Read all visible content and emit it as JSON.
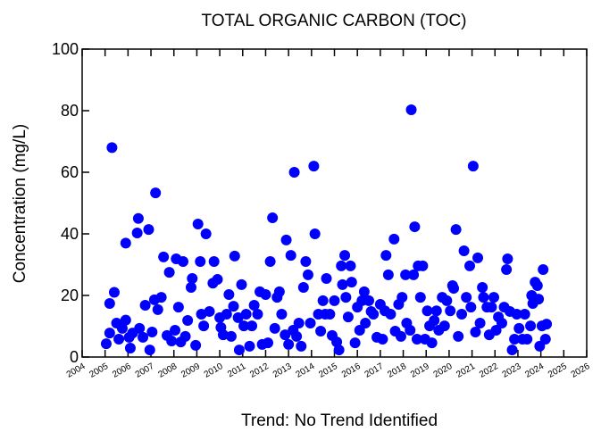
{
  "chart_data": {
    "type": "scatter",
    "title": "TOTAL ORGANIC CARBON (TOC)",
    "y_label": "Concentration (mg/L)",
    "annotation": "Trend: No Trend Identified",
    "xlim": [
      2004,
      2026
    ],
    "ylim": [
      0,
      100
    ],
    "xticks": [
      2004,
      2005,
      2006,
      2007,
      2008,
      2009,
      2010,
      2011,
      2012,
      2013,
      2014,
      2015,
      2016,
      2017,
      2018,
      2019,
      2020,
      2021,
      2022,
      2023,
      2024,
      2025,
      2026
    ],
    "yticks": [
      0,
      20,
      40,
      60,
      80,
      100
    ],
    "series": [
      {
        "color": "#0000ff",
        "x": [
          2005.05,
          2005.2,
          2005.2,
          2005.4,
          2005.3,
          2005.5,
          2005.6,
          2005.75,
          2005.9,
          2005.9,
          2006.05,
          2006.1,
          2006.2,
          2006.4,
          2006.45,
          2006.5,
          2006.65,
          2006.75,
          2006.9,
          2006.95,
          2007.05,
          2007.15,
          2007.2,
          2007.3,
          2007.45,
          2007.55,
          2007.7,
          2007.8,
          2007.9,
          2008.05,
          2008.1,
          2008.2,
          2008.3,
          2008.4,
          2008.5,
          2008.6,
          2008.75,
          2008.8,
          2008.95,
          2009.05,
          2009.15,
          2009.2,
          2009.3,
          2009.4,
          2009.55,
          2009.7,
          2009.75,
          2009.9,
          2010.0,
          2010.05,
          2010.15,
          2010.3,
          2010.4,
          2010.5,
          2010.6,
          2010.65,
          2010.8,
          2010.85,
          2010.95,
          2011.05,
          2011.15,
          2011.3,
          2011.4,
          2011.5,
          2011.65,
          2011.75,
          2011.85,
          2012.0,
          2012.1,
          2012.2,
          2012.3,
          2012.4,
          2012.5,
          2012.6,
          2012.7,
          2012.85,
          2012.9,
          2013.0,
          2013.1,
          2013.2,
          2013.25,
          2013.35,
          2013.45,
          2013.55,
          2013.65,
          2013.75,
          2013.85,
          2013.95,
          2014.1,
          2014.15,
          2014.3,
          2014.4,
          2014.5,
          2014.6,
          2014.65,
          2014.8,
          2014.9,
          2015.0,
          2015.1,
          2015.2,
          2015.3,
          2015.35,
          2015.45,
          2015.5,
          2015.6,
          2015.7,
          2015.75,
          2015.9,
          2016.0,
          2016.1,
          2016.2,
          2016.3,
          2016.35,
          2016.5,
          2016.6,
          2016.7,
          2016.85,
          2017.0,
          2017.1,
          2017.2,
          2017.25,
          2017.35,
          2017.45,
          2017.6,
          2017.65,
          2017.8,
          2017.9,
          2017.95,
          2018.1,
          2018.15,
          2018.3,
          2018.35,
          2018.45,
          2018.5,
          2018.6,
          2018.65,
          2018.75,
          2018.85,
          2018.95,
          2019.05,
          2019.15,
          2019.25,
          2019.35,
          2019.45,
          2019.55,
          2019.7,
          2019.8,
          2019.9,
          2020.05,
          2020.15,
          2020.2,
          2020.3,
          2020.4,
          2020.55,
          2020.65,
          2020.75,
          2020.9,
          2020.95,
          2021.05,
          2021.15,
          2021.25,
          2021.35,
          2021.45,
          2021.5,
          2021.65,
          2021.75,
          2021.85,
          2021.95,
          2022.05,
          2022.15,
          2022.3,
          2022.4,
          2022.5,
          2022.55,
          2022.65,
          2022.75,
          2022.85,
          2022.95,
          2023.05,
          2023.2,
          2023.3,
          2023.4,
          2023.55,
          2023.6,
          2023.65,
          2023.75,
          2023.85,
          2023.9,
          2023.95,
          2024.05,
          2024.1,
          2024.2,
          2024.25
        ],
        "values": [
          4.3,
          7.8,
          17.4,
          21,
          68,
          11,
          5.8,
          9.3,
          12,
          37,
          6.4,
          2.9,
          7.8,
          40.3,
          45,
          9.3,
          6.4,
          16.8,
          41.4,
          2.3,
          8.1,
          18.6,
          53.3,
          15.4,
          19.4,
          32.5,
          7,
          27.5,
          5.2,
          8.7,
          31.9,
          16.2,
          4.9,
          31,
          6.7,
          11.9,
          22.6,
          25.5,
          3.8,
          43.2,
          31,
          13.9,
          10.1,
          40,
          14.8,
          24,
          31,
          25.2,
          12.8,
          9.6,
          7.2,
          13.9,
          20.3,
          6.7,
          16.5,
          32.8,
          12.8,
          2.3,
          23.5,
          10.1,
          13.9,
          3.5,
          10.1,
          16.8,
          13.9,
          21.2,
          4.1,
          20.3,
          4.6,
          31,
          45.2,
          9.3,
          19.4,
          21.2,
          13.9,
          7.2,
          38,
          4.1,
          33,
          8.7,
          60,
          6.7,
          11,
          3.5,
          22.6,
          31,
          26.7,
          11,
          62,
          40,
          13.9,
          8.4,
          18.3,
          13.9,
          25.5,
          13.9,
          7,
          18.3,
          4.9,
          2.3,
          29.6,
          23.5,
          33,
          19.4,
          13,
          29.6,
          24.3,
          4.6,
          16.2,
          8.7,
          18.3,
          21.2,
          11,
          18.3,
          14.8,
          13.9,
          6.4,
          17.1,
          5.8,
          15,
          33,
          26.7,
          13.9,
          38.3,
          8.4,
          17.1,
          6.7,
          19.4,
          26.7,
          11,
          8.7,
          80.3,
          26.7,
          42.3,
          5.8,
          29.6,
          19.4,
          29.6,
          5.8,
          15,
          10.1,
          4.6,
          11.9,
          15,
          8.7,
          19.4,
          10.1,
          18.3,
          15,
          23.2,
          22.3,
          41.4,
          6.7,
          13.9,
          34.5,
          19.4,
          29.6,
          16.2,
          62,
          8.1,
          32.2,
          11,
          22.6,
          19.4,
          16.2,
          7.2,
          16.2,
          19.4,
          8.7,
          13,
          11,
          16.2,
          28.4,
          31.9,
          14.8,
          2.3,
          5.8,
          13.9,
          9.3,
          5.8,
          13.9,
          5.8,
          10.1,
          20,
          17.4,
          24.3,
          23.2,
          18.8,
          3.5,
          10.1,
          28.4,
          5.8,
          10.7
        ]
      }
    ]
  }
}
